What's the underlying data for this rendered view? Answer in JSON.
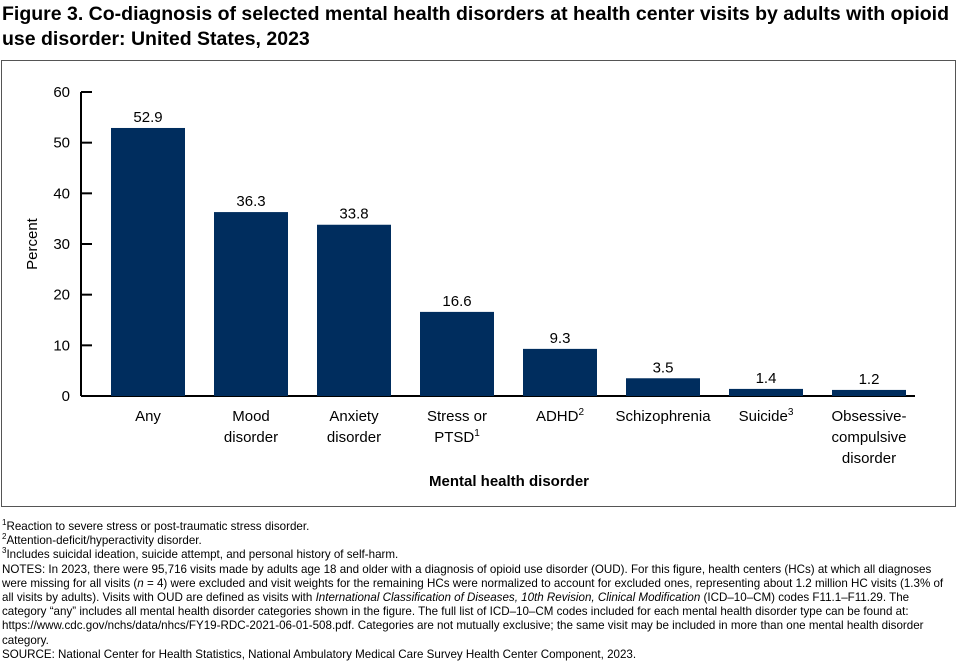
{
  "title": "Figure 3. Co-diagnosis of selected mental health disorders at health center visits by adults with opioid use disorder: United States, 2023",
  "chart_data": {
    "type": "bar",
    "title": "Figure 3. Co-diagnosis of selected mental health disorders at health center visits by adults with opioid use disorder: United States, 2023",
    "xlabel": "Mental health disorder",
    "ylabel": "Percent",
    "ylim": [
      0,
      60
    ],
    "yticks": [
      "0",
      "10",
      "20",
      "30",
      "40",
      "50",
      "60"
    ],
    "grid": false,
    "bar_color": "#002d5e",
    "categories": [
      {
        "lines": [
          "Any"
        ],
        "sup": ""
      },
      {
        "lines": [
          "Mood",
          "disorder"
        ],
        "sup": ""
      },
      {
        "lines": [
          "Anxiety",
          "disorder"
        ],
        "sup": ""
      },
      {
        "lines": [
          "Stress or",
          "PTSD"
        ],
        "sup": "1"
      },
      {
        "lines": [
          "ADHD"
        ],
        "sup": "2"
      },
      {
        "lines": [
          "Schizophrenia"
        ],
        "sup": ""
      },
      {
        "lines": [
          "Suicide"
        ],
        "sup": "3"
      },
      {
        "lines": [
          "Obsessive-",
          "compulsive",
          "disorder"
        ],
        "sup": ""
      }
    ],
    "values": [
      52.9,
      36.3,
      33.8,
      16.6,
      9.3,
      3.5,
      1.4,
      1.2
    ],
    "data_labels": [
      "52.9",
      "36.3",
      "33.8",
      "16.6",
      "9.3",
      "3.5",
      "1.4",
      "1.2"
    ]
  },
  "footnotes": [
    {
      "sup": "1",
      "text": "Reaction to severe stress or post-traumatic stress disorder."
    },
    {
      "sup": "2",
      "text": "Attention-deficit/hyperactivity disorder."
    },
    {
      "sup": "3",
      "text": "Includes suicidal ideation, suicide attempt, and personal history of self-harm."
    }
  ],
  "notes": {
    "p1": "NOTES: In 2023, there were 95,716 visits made by adults age 18 and older with a diagnosis of opioid use disorder (OUD). For this figure, health centers (HCs) at which all diagnoses were missing for all visits (",
    "n": "n",
    "p2": " = 4) were excluded and visit weights for the remaining HCs were normalized to account for excluded ones, representing about 1.2 million HC visits (1.3% of all visits by adults). Visits with OUD are defined as visits with ",
    "icd": "International Classification of Diseases, 10th Revision, Clinical Modification",
    "p3": " (ICD–10–CM) codes F11.1–F11.29. The category “any” includes all mental health disorder categories shown in the figure. The full list of ICD–10–CM codes included for each mental health disorder type can be found at: https://www.cdc.gov/nchs/data/nhcs/FY19-RDC-2021-06-01-508.pdf. Categories are not mutually exclusive; the same visit may be included in more than one mental health disorder category."
  },
  "source": "SOURCE: National Center for Health Statistics, National Ambulatory Medical Care Survey  Health Center Component, 2023."
}
